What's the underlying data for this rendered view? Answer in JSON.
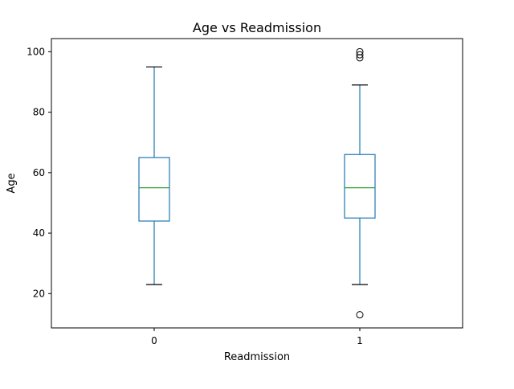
{
  "chart_data": {
    "type": "box",
    "title": "Age vs Readmission",
    "xlabel": "Readmission",
    "ylabel": "Age",
    "categories": [
      "0",
      "1"
    ],
    "ylim": [
      8.65,
      104.35
    ],
    "yticks": [
      20,
      40,
      60,
      80,
      100
    ],
    "grid": false,
    "boxes": [
      {
        "category": "0",
        "whisker_low": 23,
        "q1": 44,
        "median": 55,
        "q3": 65,
        "whisker_high": 95,
        "outliers": []
      },
      {
        "category": "1",
        "whisker_low": 23,
        "q1": 45,
        "median": 55,
        "q3": 66,
        "whisker_high": 89,
        "outliers": [
          13,
          98,
          99,
          100
        ]
      }
    ],
    "colors": {
      "box": "#1f77b4",
      "median": "#2ca02c",
      "cap": "#000000",
      "outlier": "#000000"
    }
  }
}
